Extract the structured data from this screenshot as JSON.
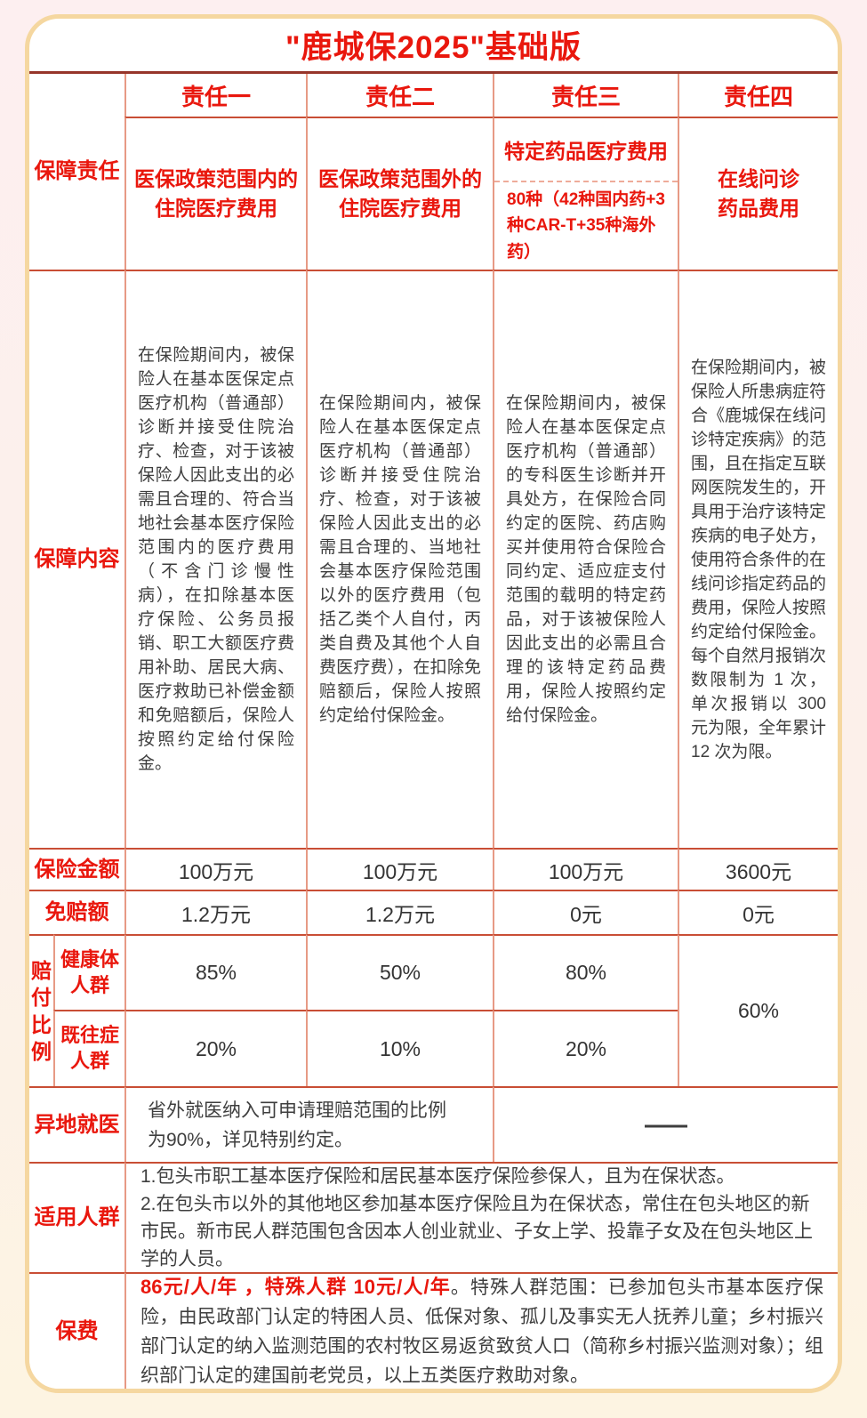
{
  "title": "\"鹿城保2025\"基础版",
  "colors": {
    "accent_red": "#e9170d",
    "grid_horizontal_line": "#c94e35",
    "grid_vertical_line": "#e79a85",
    "title_underline": "#96352a",
    "card_border_gold": "#f5d7a0",
    "body_text": "#3e3e3e",
    "background_top": "#fdeff0",
    "background_bottom": "#fdf4e2"
  },
  "header": {
    "row_label": "保障责任",
    "columns": [
      {
        "name": "责任一",
        "desc": "医保政策范围内的\n住院医疗费用"
      },
      {
        "name": "责任二",
        "desc": "医保政策范围外的\n住院医疗费用"
      },
      {
        "name": "责任三",
        "desc_title": "特定药品医疗费用",
        "desc_note": "80种（42种国内药+3种CAR-T+35种海外药）"
      },
      {
        "name": "责任四",
        "desc": "在线问诊\n药品费用"
      }
    ]
  },
  "coverage": {
    "row_label": "保障内容",
    "cells": [
      "在保险期间内，被保险人在基本医保定点医疗机构（普通部）诊断并接受住院治疗、检查，对于该被保险人因此支出的必需且合理的、符合当地社会基本医疗保险范围内的医疗费用（不含门诊慢性病），在扣除基本医疗保险、公务员报销、职工大额医疗费用补助、居民大病、医疗救助已补偿金额和免赔额后，保险人按照约定给付保险金。",
      "在保险期间内，被保险人在基本医保定点医疗机构（普通部）诊断并接受住院治疗、检查，对于该被保险人因此支出的必需且合理的、当地社会基本医疗保险范围以外的医疗费用（包括乙类个人自付，丙类自费及其他个人自费医疗费），在扣除免赔额后，保险人按照约定给付保险金。",
      "在保险期间内，被保险人在基本医保定点医疗机构（普通部）的专科医生诊断并开具处方，在保险合同约定的医院、药店购买并使用符合保险合同约定、适应症支付范围的载明的特定药品，对于该被保险人因此支出的必需且合理的该特定药品费用，保险人按照约定给付保险金。",
      "在保险期间内，被保险人所患病症符合《鹿城保在线问诊特定疾病》的范围，且在指定互联网医院发生的，开具用于治疗该特定疾病的电子处方，使用符合条件的在线问诊指定药品的费用，保险人按照约定给付保险金。每个自然月报销次数限制为 1 次，单次报销以 300 元为限，全年累计 12 次为限。"
    ]
  },
  "amount": {
    "row_label": "保险金额",
    "values": [
      "100万元",
      "100万元",
      "100万元",
      "3600元"
    ]
  },
  "deductible": {
    "row_label": "免赔额",
    "values": [
      "1.2万元",
      "1.2万元",
      "0元",
      "0元"
    ]
  },
  "payout_ratio": {
    "row_label": "赔付比例",
    "sub_rows": [
      {
        "label": "健康体\n人群",
        "values": [
          "85%",
          "50%",
          "80%"
        ]
      },
      {
        "label": "既往症\n人群",
        "values": [
          "20%",
          "10%",
          "20%"
        ]
      }
    ],
    "merged_value": "60%"
  },
  "remote_medical": {
    "row_label": "异地就医",
    "text": "省外就医纳入可申请理赔范围的比例\n为90%，详见特别约定。",
    "not_applicable": "—"
  },
  "eligible": {
    "row_label": "适用人群",
    "text": "1.包头市职工基本医疗保险和居民基本医疗保险参保人，且为在保状态。\n2.在包头市以外的其他地区参加基本医疗保险且为在保状态，常住在包头地区的新市民。新市民人群范围包含因本人创业就业、子女上学、投靠子女及在包头地区上学的人员。"
  },
  "premium": {
    "row_label": "保费",
    "highlight": "86元/人/年 ，特殊人群 10元/人/年",
    "detail": "。特殊人群范围：已参加包头市基本医疗保险，由民政部门认定的特困人员、低保对象、孤儿及事实无人抚养儿童；乡村振兴部门认定的纳入监测范围的农村牧区易返贫致贫人口（简称乡村振兴监测对象）；组织部门认定的建国前老党员，以上五类医疗救助对象。"
  }
}
